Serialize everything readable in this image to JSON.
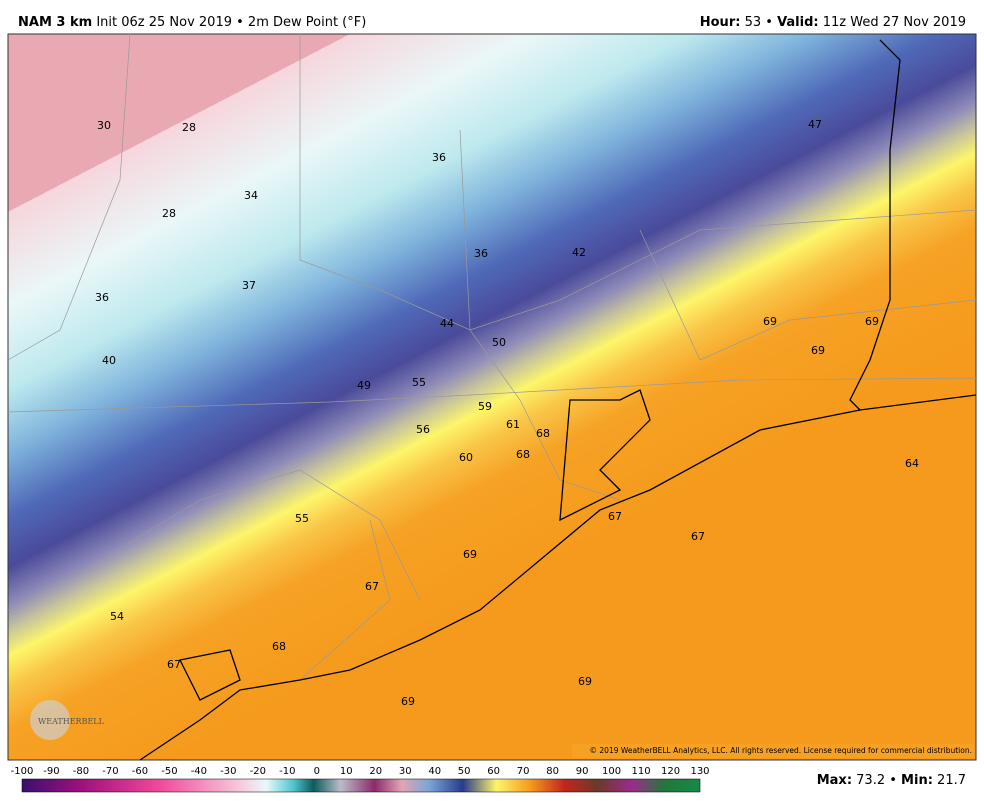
{
  "header": {
    "model": "NAM 3 km",
    "description": "Init 06z 25 Nov 2019 • 2m Dew Point (°F)",
    "hour_label": "Hour:",
    "hour": "53 •",
    "valid_label": "Valid:",
    "valid": "11z Wed 27 Nov 2019"
  },
  "map": {
    "labels": [
      30,
      28,
      36,
      34,
      28,
      37,
      36,
      40,
      47,
      42,
      36,
      44,
      50,
      49,
      55,
      59,
      61,
      68,
      68,
      56,
      60,
      55,
      69,
      69,
      69,
      64,
      67,
      67,
      69,
      67,
      54,
      68,
      67,
      69,
      69
    ],
    "logo": "WEATHERBELL",
    "copyright": "© 2019 WeatherBELL Analytics, LLC. All rights reserved. License required for commercial distribution."
  },
  "colorbar": {
    "ticks": [
      -100,
      -90,
      -80,
      -70,
      -60,
      -50,
      -40,
      -30,
      -20,
      -10,
      0,
      10,
      20,
      30,
      40,
      50,
      60,
      70,
      80,
      90,
      100,
      110,
      120,
      130
    ]
  },
  "footer": {
    "max_label": "Max:",
    "max": "73.2 •",
    "min_label": "Min:",
    "min": "21.7"
  }
}
